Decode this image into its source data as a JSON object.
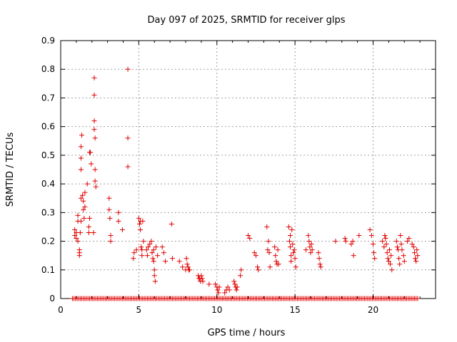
{
  "chart_data": {
    "type": "scatter",
    "title": "Day 097 of 2025, SRMTID for receiver glps",
    "xlabel": "GPS time / hours",
    "ylabel": "SRMTID / TECUs",
    "xlim": [
      0,
      24
    ],
    "ylim": [
      0,
      0.9
    ],
    "xticks": [
      0,
      5,
      10,
      15,
      20
    ],
    "xtick_labels": [
      "0",
      "5",
      "10",
      "15",
      "20"
    ],
    "yticks": [
      0,
      0.1,
      0.2,
      0.3,
      0.4,
      0.5,
      0.6,
      0.7,
      0.8,
      0.9
    ],
    "ytick_labels": [
      "0",
      "0.1",
      "0.2",
      "0.3",
      "0.4",
      "0.5",
      "0.6",
      "0.7",
      "0.8",
      "0.9"
    ],
    "grid": true,
    "marker": "+",
    "color": "#e00000",
    "zero_band": {
      "x_start": 0.75,
      "x_end": 22.85,
      "step": 0.1,
      "y": 0
    },
    "series": [
      {
        "name": "SRMTID",
        "points": [
          [
            0.9,
            0.24
          ],
          [
            0.9,
            0.22
          ],
          [
            1.0,
            0.23
          ],
          [
            1.0,
            0.21
          ],
          [
            1.1,
            0.27
          ],
          [
            1.1,
            0.29
          ],
          [
            1.1,
            0.2
          ],
          [
            1.2,
            0.16
          ],
          [
            1.2,
            0.15
          ],
          [
            1.2,
            0.17
          ],
          [
            1.25,
            0.23
          ],
          [
            1.3,
            0.27
          ],
          [
            1.3,
            0.35
          ],
          [
            1.3,
            0.45
          ],
          [
            1.3,
            0.49
          ],
          [
            1.3,
            0.53
          ],
          [
            1.35,
            0.57
          ],
          [
            1.4,
            0.36
          ],
          [
            1.45,
            0.34
          ],
          [
            1.45,
            0.31
          ],
          [
            1.5,
            0.28
          ],
          [
            1.55,
            0.37
          ],
          [
            1.55,
            0.32
          ],
          [
            1.7,
            0.4
          ],
          [
            1.8,
            0.25
          ],
          [
            1.8,
            0.23
          ],
          [
            1.85,
            0.28
          ],
          [
            1.85,
            0.51
          ],
          [
            1.9,
            0.51
          ],
          [
            1.95,
            0.47
          ],
          [
            2.1,
            0.23
          ],
          [
            2.15,
            0.77
          ],
          [
            2.15,
            0.71
          ],
          [
            2.15,
            0.62
          ],
          [
            2.15,
            0.59
          ],
          [
            2.2,
            0.56
          ],
          [
            2.2,
            0.45
          ],
          [
            2.2,
            0.41
          ],
          [
            2.25,
            0.39
          ],
          [
            3.1,
            0.35
          ],
          [
            3.1,
            0.31
          ],
          [
            3.15,
            0.28
          ],
          [
            3.2,
            0.22
          ],
          [
            3.2,
            0.2
          ],
          [
            3.7,
            0.3
          ],
          [
            3.7,
            0.27
          ],
          [
            3.95,
            0.24
          ],
          [
            4.3,
            0.8
          ],
          [
            4.3,
            0.56
          ],
          [
            4.3,
            0.46
          ],
          [
            4.65,
            0.14
          ],
          [
            4.7,
            0.16
          ],
          [
            4.85,
            0.17
          ],
          [
            5.0,
            0.28
          ],
          [
            5.05,
            0.26
          ],
          [
            5.1,
            0.27
          ],
          [
            5.1,
            0.24
          ],
          [
            5.15,
            0.18
          ],
          [
            5.2,
            0.17
          ],
          [
            5.2,
            0.15
          ],
          [
            5.25,
            0.27
          ],
          [
            5.3,
            0.2
          ],
          [
            5.5,
            0.17
          ],
          [
            5.55,
            0.15
          ],
          [
            5.6,
            0.18
          ],
          [
            5.7,
            0.19
          ],
          [
            5.8,
            0.2
          ],
          [
            5.85,
            0.16
          ],
          [
            5.9,
            0.14
          ],
          [
            5.95,
            0.17
          ],
          [
            5.95,
            0.13
          ],
          [
            6.0,
            0.1
          ],
          [
            6.0,
            0.08
          ],
          [
            6.05,
            0.06
          ],
          [
            6.1,
            0.18
          ],
          [
            6.2,
            0.15
          ],
          [
            6.5,
            0.18
          ],
          [
            6.6,
            0.16
          ],
          [
            6.7,
            0.13
          ],
          [
            7.1,
            0.26
          ],
          [
            7.15,
            0.14
          ],
          [
            7.6,
            0.13
          ],
          [
            7.8,
            0.11
          ],
          [
            8.0,
            0.1
          ],
          [
            8.05,
            0.14
          ],
          [
            8.1,
            0.12
          ],
          [
            8.15,
            0.11
          ],
          [
            8.2,
            0.1
          ],
          [
            8.25,
            0.1
          ],
          [
            8.8,
            0.08
          ],
          [
            8.85,
            0.07
          ],
          [
            8.9,
            0.07
          ],
          [
            8.95,
            0.06
          ],
          [
            9.0,
            0.08
          ],
          [
            9.05,
            0.07
          ],
          [
            9.1,
            0.06
          ],
          [
            9.5,
            0.05
          ],
          [
            9.9,
            0.05
          ],
          [
            10.0,
            0.04
          ],
          [
            10.05,
            0.03
          ],
          [
            10.1,
            0.02
          ],
          [
            10.15,
            0.04
          ],
          [
            10.5,
            0.02
          ],
          [
            10.6,
            0.03
          ],
          [
            10.7,
            0.04
          ],
          [
            10.8,
            0.03
          ],
          [
            11.1,
            0.06
          ],
          [
            11.15,
            0.05
          ],
          [
            11.2,
            0.04
          ],
          [
            11.25,
            0.03
          ],
          [
            11.3,
            0.04
          ],
          [
            11.5,
            0.08
          ],
          [
            11.55,
            0.1
          ],
          [
            12.0,
            0.22
          ],
          [
            12.1,
            0.21
          ],
          [
            12.4,
            0.16
          ],
          [
            12.5,
            0.15
          ],
          [
            12.6,
            0.11
          ],
          [
            12.65,
            0.1
          ],
          [
            13.2,
            0.25
          ],
          [
            13.25,
            0.17
          ],
          [
            13.3,
            0.2
          ],
          [
            13.35,
            0.16
          ],
          [
            13.4,
            0.11
          ],
          [
            13.7,
            0.18
          ],
          [
            13.75,
            0.15
          ],
          [
            13.8,
            0.13
          ],
          [
            13.85,
            0.12
          ],
          [
            13.9,
            0.17
          ],
          [
            13.95,
            0.12
          ],
          [
            14.6,
            0.25
          ],
          [
            14.65,
            0.2
          ],
          [
            14.7,
            0.22
          ],
          [
            14.7,
            0.18
          ],
          [
            14.75,
            0.15
          ],
          [
            14.75,
            0.13
          ],
          [
            14.8,
            0.24
          ],
          [
            14.85,
            0.19
          ],
          [
            14.9,
            0.16
          ],
          [
            14.95,
            0.17
          ],
          [
            15.0,
            0.14
          ],
          [
            15.05,
            0.11
          ],
          [
            15.7,
            0.17
          ],
          [
            15.85,
            0.22
          ],
          [
            15.9,
            0.2
          ],
          [
            15.95,
            0.18
          ],
          [
            16.0,
            0.16
          ],
          [
            16.05,
            0.19
          ],
          [
            16.1,
            0.17
          ],
          [
            16.5,
            0.16
          ],
          [
            16.55,
            0.14
          ],
          [
            16.6,
            0.12
          ],
          [
            16.65,
            0.11
          ],
          [
            17.6,
            0.2
          ],
          [
            18.2,
            0.21
          ],
          [
            18.25,
            0.2
          ],
          [
            18.6,
            0.19
          ],
          [
            18.7,
            0.2
          ],
          [
            18.75,
            0.15
          ],
          [
            19.1,
            0.22
          ],
          [
            19.8,
            0.24
          ],
          [
            19.9,
            0.22
          ],
          [
            20.0,
            0.19
          ],
          [
            20.05,
            0.16
          ],
          [
            20.1,
            0.14
          ],
          [
            20.6,
            0.2
          ],
          [
            20.7,
            0.18
          ],
          [
            20.75,
            0.22
          ],
          [
            20.8,
            0.21
          ],
          [
            20.85,
            0.19
          ],
          [
            20.9,
            0.16
          ],
          [
            20.95,
            0.14
          ],
          [
            21.0,
            0.13
          ],
          [
            21.05,
            0.17
          ],
          [
            21.1,
            0.12
          ],
          [
            21.15,
            0.15
          ],
          [
            21.2,
            0.1
          ],
          [
            21.5,
            0.2
          ],
          [
            21.55,
            0.18
          ],
          [
            21.6,
            0.17
          ],
          [
            21.65,
            0.14
          ],
          [
            21.7,
            0.12
          ],
          [
            21.75,
            0.22
          ],
          [
            21.8,
            0.19
          ],
          [
            21.85,
            0.17
          ],
          [
            21.95,
            0.15
          ],
          [
            22.0,
            0.13
          ],
          [
            22.2,
            0.2
          ],
          [
            22.3,
            0.21
          ],
          [
            22.5,
            0.19
          ],
          [
            22.6,
            0.18
          ],
          [
            22.65,
            0.16
          ],
          [
            22.7,
            0.14
          ],
          [
            22.75,
            0.13
          ],
          [
            22.8,
            0.17
          ],
          [
            22.85,
            0.15
          ]
        ]
      }
    ]
  }
}
